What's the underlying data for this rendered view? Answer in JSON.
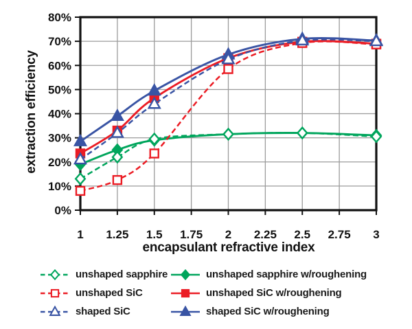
{
  "chart_data": {
    "type": "line",
    "title": "",
    "xlabel": "encapsulant refractive index",
    "ylabel": "extraction efficiency",
    "xlim": [
      1,
      3
    ],
    "ylim": [
      0,
      80
    ],
    "grid": true,
    "legend_position": "bottom",
    "x_ticks": [
      "1",
      "1.25",
      "1.5",
      "1.75",
      "2",
      "2.25",
      "2.5",
      "2.75",
      "3"
    ],
    "y_ticks": [
      "0%",
      "10%",
      "20%",
      "30%",
      "40%",
      "50%",
      "60%",
      "70%",
      "80%"
    ],
    "x": [
      1,
      1.25,
      1.5,
      2,
      2.5,
      3
    ],
    "series": [
      {
        "name": "unshaped sapphire",
        "color": "#00A55C",
        "line": "dashed",
        "marker": "diamond-open",
        "values": [
          13,
          22,
          29.5,
          31.5,
          32,
          30.5
        ]
      },
      {
        "name": "unshaped sapphire w/roughening",
        "color": "#00A55C",
        "line": "solid",
        "marker": "diamond-filled",
        "values": [
          19,
          25,
          29,
          31.5,
          32,
          31
        ]
      },
      {
        "name": "unshaped SiC",
        "color": "#EB1C24",
        "line": "dashed",
        "marker": "square-open",
        "values": [
          8,
          12.5,
          23.5,
          58.5,
          69.3,
          68.7
        ]
      },
      {
        "name": "unshaped SiC w/roughening",
        "color": "#EB1C24",
        "line": "solid",
        "marker": "square-filled",
        "values": [
          23.5,
          33,
          46.5,
          63,
          69.8,
          69
        ]
      },
      {
        "name": "shaped SiC",
        "color": "#3954A4",
        "line": "dashed",
        "marker": "triangle-open",
        "values": [
          21,
          32,
          44,
          62.5,
          70.3,
          70
        ]
      },
      {
        "name": "shaped SiC w/roughening",
        "color": "#3954A4",
        "line": "solid",
        "marker": "triangle-filled",
        "values": [
          28.5,
          39,
          49.5,
          64.5,
          71,
          70.3
        ]
      }
    ],
    "colors": {
      "grid": "#9B9B9B",
      "axis": "#111111",
      "background": "#FFFFFF",
      "text": "#1A1A1A"
    }
  }
}
